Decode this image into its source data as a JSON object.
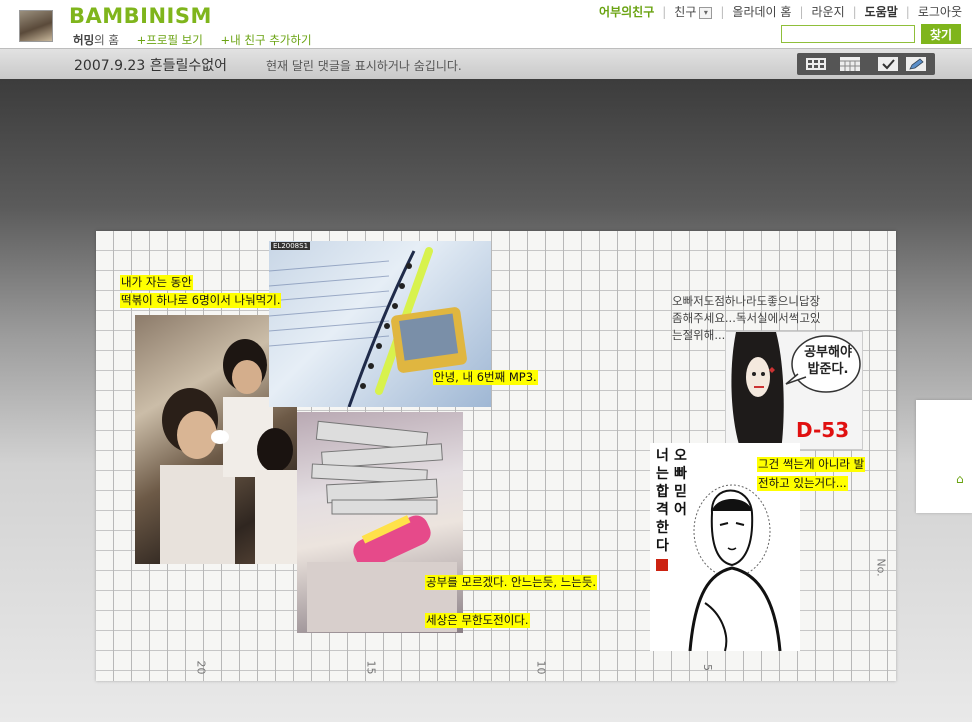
{
  "header": {
    "brand": "BAMBINISM",
    "owner_name": "허밍",
    "owner_suffix": "의 홈",
    "profile_link": "+프로필 보기",
    "add_friend_link": "+내 친구 추가하기"
  },
  "topmenu": {
    "items": [
      "어부의친구",
      "친구",
      "올라데이 홈",
      "라운지",
      "도움말",
      "로그아웃"
    ]
  },
  "search": {
    "value": "",
    "button_label": "찾기"
  },
  "post": {
    "title": "2007.9.23 흔들릴수없어",
    "comment_toggle": "현재 달린 댓글을 표시하거나 숨깁니다."
  },
  "tools": [
    "grid-view-icon",
    "calendar-view-icon",
    "check-icon",
    "edit-pencil-icon"
  ],
  "photo": {
    "captions": {
      "c1_line1": "내가 자는 동안",
      "c1_line2": "떡볶이 하나로 6명이서 나눠먹기.",
      "c2": "안녕, 내 6번째 MP3.",
      "c3": "공부를 모르겠다. 안느는듯, 느는듯.",
      "c4": "세상은 무한도전이다.",
      "c5_line1": "그건 썩는게 아니라 발",
      "c5_line2": "전하고 있는거다..."
    },
    "handnote": "오빠저도점하나라도좋으니답장\n좀해주세요...독서실에서썩고있\n는절위해...",
    "comic_bubble_line1": "공부해야",
    "comic_bubble_line2": "밥준다.",
    "dday": "D-53",
    "vertical_text_col1": "오빠믿어",
    "vertical_text_col2": "너는합격한다",
    "photo_stamp": "EL2008S1",
    "scale_labels": [
      "20",
      "15",
      "10",
      "5",
      "No."
    ]
  }
}
